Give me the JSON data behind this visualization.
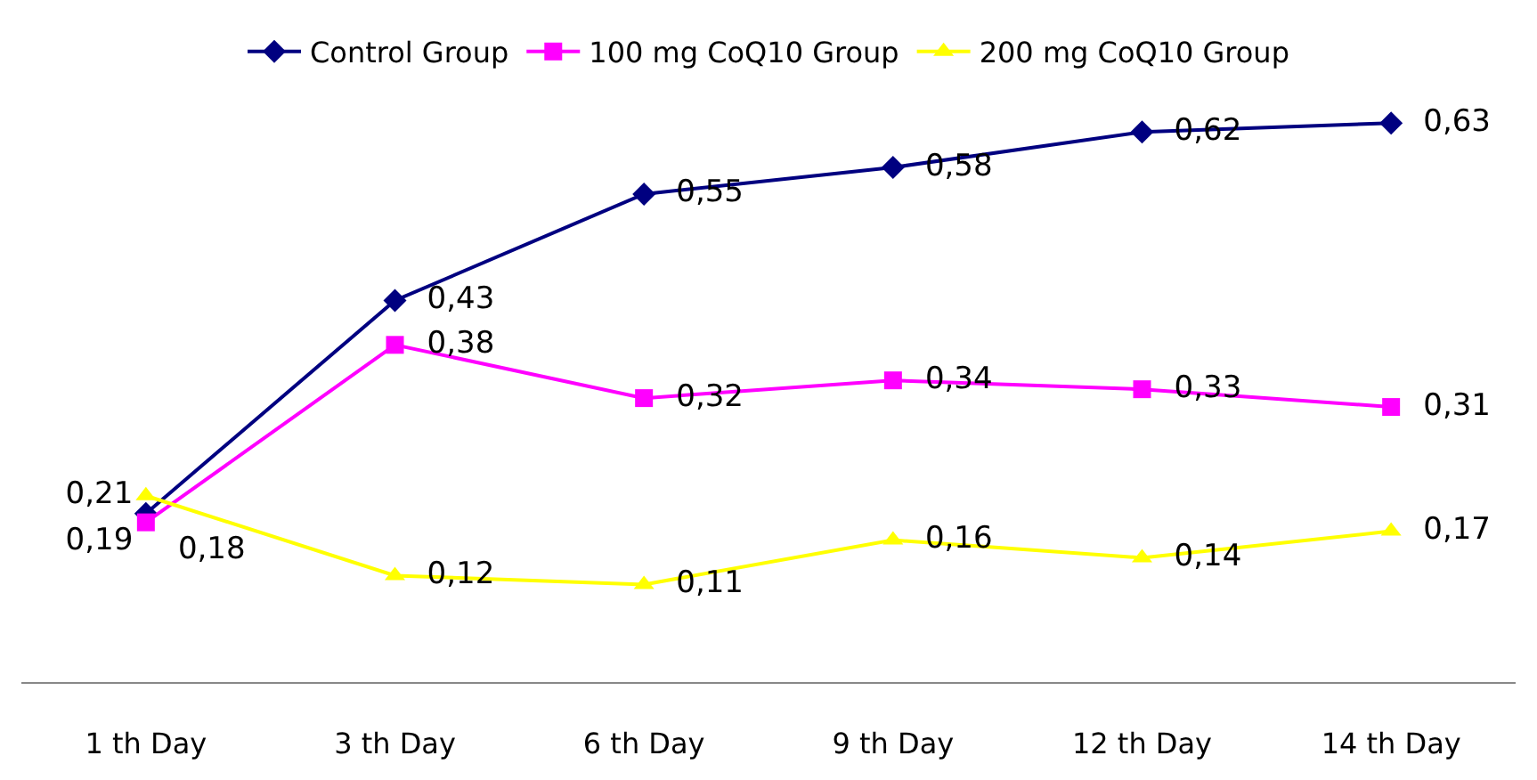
{
  "chart_data": {
    "type": "line",
    "categories": [
      "1 th Day",
      "3 th Day",
      "6 th Day",
      "9 th Day",
      "12 th Day",
      "14 th Day"
    ],
    "series": [
      {
        "name": "Control Group",
        "color": "#000080",
        "marker": "diamond",
        "values": [
          0.19,
          0.43,
          0.55,
          0.58,
          0.62,
          0.63
        ],
        "value_labels": [
          "0,19",
          "0,43",
          "0,55",
          "0,58",
          "0,62",
          "0,63"
        ]
      },
      {
        "name": "100 mg CoQ10 Group",
        "color": "#ff00ff",
        "marker": "square",
        "values": [
          0.18,
          0.38,
          0.32,
          0.34,
          0.33,
          0.31
        ],
        "value_labels": [
          "0,18",
          "0,38",
          "0,32",
          "0,34",
          "0,33",
          "0,31"
        ]
      },
      {
        "name": "200 mg CoQ10 Group",
        "color": "#ffff00",
        "marker": "triangle",
        "values": [
          0.21,
          0.12,
          0.11,
          0.16,
          0.14,
          0.17
        ],
        "value_labels": [
          "0,21",
          "0,12",
          "0,11",
          "0,16",
          "0,14",
          "0,17"
        ]
      }
    ],
    "legend": "top",
    "tick_labels": "x"
  }
}
